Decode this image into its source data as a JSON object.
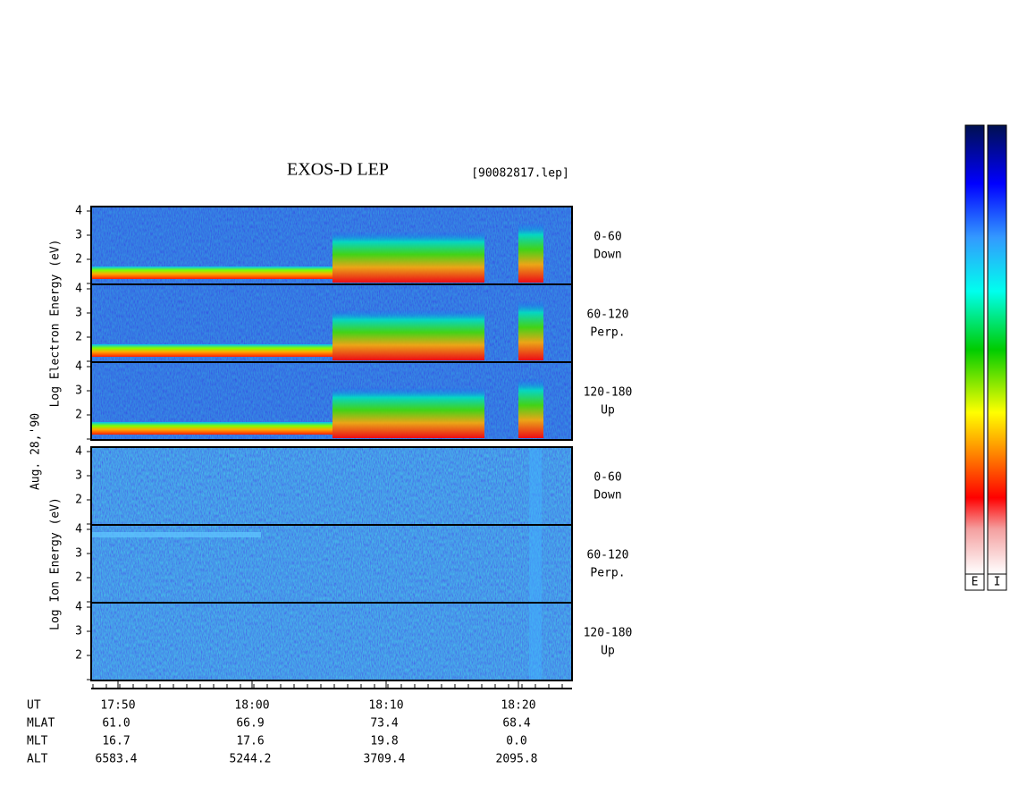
{
  "title": "EXOS-D LEP",
  "file": "[90082817.lep]",
  "date": "Aug. 28,'90",
  "groups": [
    {
      "ylabel": "Log  Electron  Energy (eV)",
      "yticks": [
        2,
        3,
        4
      ],
      "panels": [
        {
          "angle": "0-60",
          "direction": "Down"
        },
        {
          "angle": "60-120",
          "direction": "Perp."
        },
        {
          "angle": "120-180",
          "direction": "Up"
        }
      ]
    },
    {
      "ylabel": "Log  Ion  Energy (eV)",
      "yticks": [
        2,
        3,
        4
      ],
      "panels": [
        {
          "angle": "0-60",
          "direction": "Down"
        },
        {
          "angle": "60-120",
          "direction": "Perp."
        },
        {
          "angle": "120-180",
          "direction": "Up"
        }
      ]
    }
  ],
  "times": [
    "17:50",
    "18:00",
    "18:10",
    "18:20"
  ],
  "ephemeris": {
    "labels": [
      "UT",
      "MLAT",
      "MLT",
      "ALT"
    ],
    "MLAT": [
      "61.0",
      "66.9",
      "73.4",
      "68.4"
    ],
    "MLT": [
      "16.7",
      "17.6",
      "19.8",
      "0.0"
    ],
    "ALT": [
      "6583.4",
      "5244.2",
      "3709.4",
      "2095.8"
    ]
  },
  "colorbars": [
    "E",
    "I"
  ]
}
